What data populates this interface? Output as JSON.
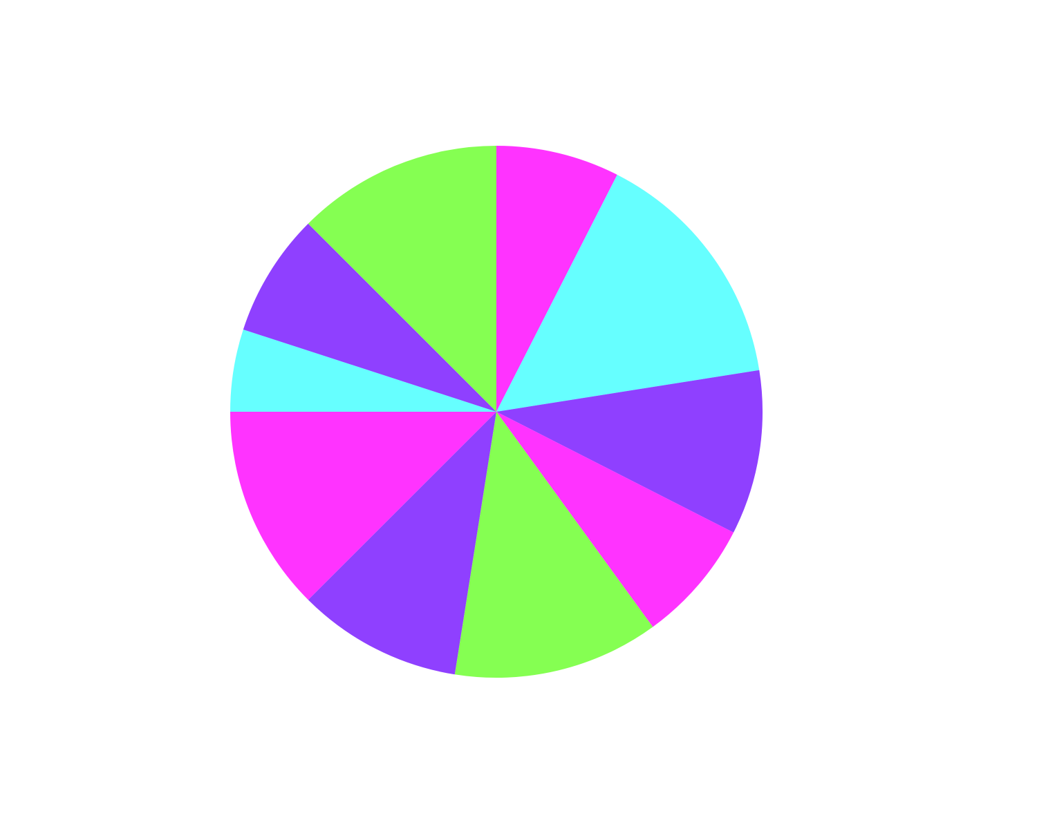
{
  "chart_data": {
    "type": "pie",
    "start_angle": "12 o'clock",
    "direction": "clockwise",
    "legend": "none",
    "slices": [
      {
        "value": 7.5,
        "color": "#ff33ff"
      },
      {
        "value": 15.0,
        "color": "#66ffff"
      },
      {
        "value": 10.0,
        "color": "#8f40ff"
      },
      {
        "value": 7.5,
        "color": "#ff33ff"
      },
      {
        "value": 12.5,
        "color": "#85ff52"
      },
      {
        "value": 10.0,
        "color": "#8f40ff"
      },
      {
        "value": 12.5,
        "color": "#ff33ff"
      },
      {
        "value": 5.0,
        "color": "#66ffff"
      },
      {
        "value": 7.5,
        "color": "#8f40ff"
      },
      {
        "value": 12.5,
        "color": "#85ff52"
      }
    ]
  }
}
